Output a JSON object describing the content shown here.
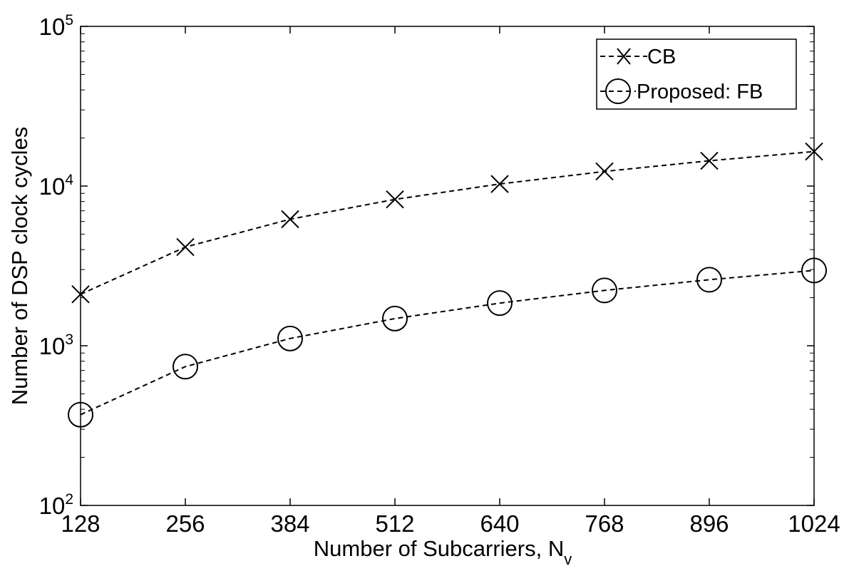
{
  "chart_data": {
    "type": "line",
    "title": "",
    "xlabel": "Number of Subcarriers, N",
    "xlabel_subscript": "v",
    "ylabel": "Number of DSP clock cycles",
    "xlim": [
      128,
      1024
    ],
    "ylim": [
      100,
      100000
    ],
    "yscale": "log",
    "grid": false,
    "legend_position": "top-right",
    "x": [
      128,
      256,
      384,
      512,
      640,
      768,
      896,
      1024
    ],
    "x_tick_labels": [
      "128",
      "256",
      "384",
      "512",
      "640",
      "768",
      "896",
      "1024"
    ],
    "y_ticks": [
      {
        "value": 100,
        "base": "10",
        "exp": "2"
      },
      {
        "value": 1000,
        "base": "10",
        "exp": "3"
      },
      {
        "value": 10000,
        "base": "10",
        "exp": "4"
      },
      {
        "value": 100000,
        "base": "10",
        "exp": "5"
      }
    ],
    "series": [
      {
        "name": "CB",
        "marker": "x",
        "line_style": "dashed",
        "color": "#000000",
        "values": [
          2100,
          4150,
          6200,
          8250,
          10300,
          12350,
          14400,
          16450
        ]
      },
      {
        "name": "Proposed: FB",
        "marker": "circle",
        "line_style": "dashed",
        "color": "#000000",
        "values": [
          370,
          740,
          1110,
          1480,
          1850,
          2220,
          2590,
          2960
        ]
      }
    ]
  }
}
